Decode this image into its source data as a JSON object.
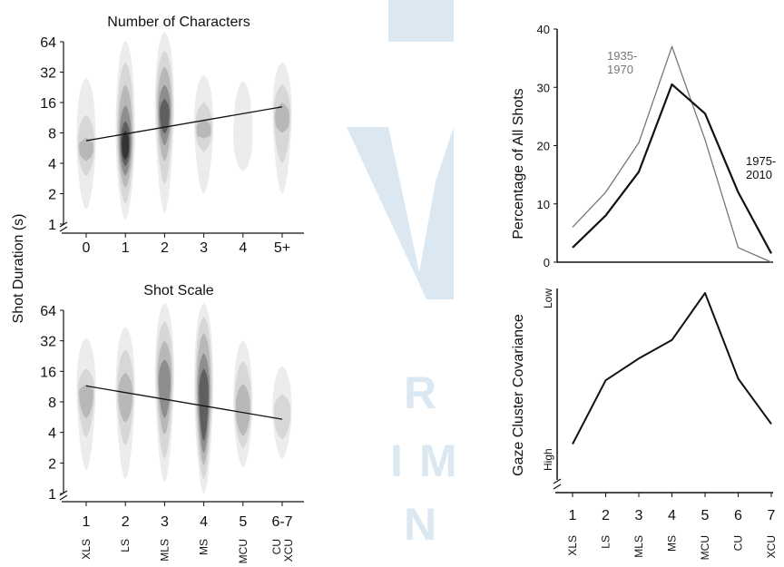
{
  "colors": {
    "watermark": "#dbe8f1",
    "line_dark": "#111111",
    "line_light": "#777777",
    "density_levels": [
      "#ececec",
      "#d7d7d7",
      "#b8b8b8",
      "#8e8e8e",
      "#5f5f5f",
      "#333333"
    ]
  },
  "watermark": {
    "letters": [
      "R",
      "I",
      "M",
      "N"
    ]
  },
  "shared": {
    "ylabel": "Shot Duration (s)"
  },
  "chart_data": [
    {
      "id": "characters",
      "type": "heatmap",
      "title": "Number of Characters",
      "xlabel": "",
      "ylabel": "Shot Duration (s)",
      "y_scale": "log2",
      "y_ticks": [
        "1",
        "2",
        "4",
        "8",
        "16",
        "32",
        "64"
      ],
      "categories": [
        "0",
        "1",
        "2",
        "3",
        "4",
        "5+"
      ],
      "density_columns": [
        {
          "x": "0",
          "median": 5.7,
          "levels": [
            [
              1.4,
              28
            ],
            [
              3.0,
              12
            ],
            [
              4.2,
              7.2
            ]
          ]
        },
        {
          "x": "1",
          "median": 6.0,
          "levels": [
            [
              1.1,
              65
            ],
            [
              1.6,
              40
            ],
            [
              2.3,
              24
            ],
            [
              3.0,
              15
            ],
            [
              3.7,
              10.5
            ],
            [
              4.3,
              8.5
            ]
          ]
        },
        {
          "x": "2",
          "median": 12.0,
          "levels": [
            [
              1.3,
              80
            ],
            [
              2.5,
              52
            ],
            [
              4.2,
              36
            ],
            [
              6.0,
              24
            ],
            [
              7.8,
              17.5
            ]
          ]
        },
        {
          "x": "3",
          "median": 8.5,
          "levels": [
            [
              2.0,
              30
            ],
            [
              5.2,
              16
            ],
            [
              7.0,
              11
            ]
          ]
        },
        {
          "x": "4",
          "median": 6.5,
          "levels": [
            [
              3.3,
              26
            ]
          ]
        },
        {
          "x": "5+",
          "median": 11.0,
          "levels": [
            [
              2.0,
              40
            ],
            [
              4.0,
              24
            ],
            [
              8.0,
              16
            ]
          ]
        }
      ],
      "trend": {
        "from": {
          "x": 0,
          "y": 6.7
        },
        "to": {
          "x": 5,
          "y": 14.5
        }
      }
    },
    {
      "id": "scale",
      "type": "heatmap",
      "title": "Shot Scale",
      "xlabel": "",
      "ylabel": "Shot Duration (s)",
      "y_scale": "log2",
      "y_ticks": [
        "1",
        "2",
        "4",
        "8",
        "16",
        "32",
        "64"
      ],
      "categories": [
        "1",
        "2",
        "3",
        "4",
        "5",
        "6-7"
      ],
      "category_sublabels": [
        [
          "XLS"
        ],
        [
          "LS"
        ],
        [
          "MLS"
        ],
        [
          "MS"
        ],
        [
          "MCU"
        ],
        [
          "CU",
          "XCU"
        ]
      ],
      "density_columns": [
        {
          "x": "1",
          "median": 9.5,
          "levels": [
            [
              1.7,
              34
            ],
            [
              3.6,
              17
            ],
            [
              5.5,
              12
            ]
          ]
        },
        {
          "x": "2",
          "median": 9.0,
          "levels": [
            [
              1.4,
              44
            ],
            [
              3.0,
              26
            ],
            [
              5.0,
              15.5
            ]
          ]
        },
        {
          "x": "3",
          "median": 12.0,
          "levels": [
            [
              1.3,
              75
            ],
            [
              2.2,
              50
            ],
            [
              3.8,
              32
            ],
            [
              5.5,
              21
            ]
          ]
        },
        {
          "x": "4",
          "median": 9.0,
          "levels": [
            [
              1.0,
              75
            ],
            [
              1.4,
              55
            ],
            [
              1.9,
              38
            ],
            [
              2.5,
              24
            ],
            [
              3.3,
              17
            ]
          ]
        },
        {
          "x": "5",
          "median": 6.5,
          "levels": [
            [
              1.8,
              32
            ],
            [
              2.8,
              20
            ],
            [
              3.7,
              12
            ]
          ]
        },
        {
          "x": "6-7",
          "median": 6.0,
          "levels": [
            [
              2.2,
              18
            ],
            [
              3.4,
              9.5
            ]
          ]
        }
      ],
      "trend": {
        "from": {
          "x": 0,
          "y": 11.5
        },
        "to": {
          "x": 5,
          "y": 5.4
        }
      }
    },
    {
      "id": "percentage",
      "type": "line",
      "title": "",
      "xlabel": "",
      "ylabel": "Percentage of All Shots",
      "ylim": [
        0,
        40
      ],
      "y_ticks": [
        0,
        10,
        20,
        30,
        40
      ],
      "x": [
        1,
        2,
        3,
        4,
        5,
        6,
        7
      ],
      "series": [
        {
          "name": "1935-\n1970",
          "label_lines": [
            "1935-",
            "1970"
          ],
          "style": "light",
          "values": [
            6,
            12,
            20.5,
            37,
            21,
            2.5,
            0
          ]
        },
        {
          "name": "1975-\n2010",
          "label_lines": [
            "1975-",
            "2010"
          ],
          "style": "dark",
          "values": [
            2.5,
            8,
            15.5,
            30.5,
            25.5,
            12,
            1.5
          ]
        }
      ]
    },
    {
      "id": "gaze",
      "type": "line",
      "title": "",
      "xlabel": "",
      "ylabel": "Gaze Cluster Covariance",
      "y_end_labels": {
        "top": "Low",
        "bottom": "High"
      },
      "ylim": [
        0,
        10
      ],
      "categories": [
        "1",
        "2",
        "3",
        "4",
        "5",
        "6",
        "7"
      ],
      "category_sublabels": [
        [
          "XLS"
        ],
        [
          "LS"
        ],
        [
          "MLS"
        ],
        [
          "MS"
        ],
        [
          "MCU"
        ],
        [
          "CU"
        ],
        [
          "XCU"
        ]
      ],
      "series": [
        {
          "values": [
            1.0,
            4.8,
            6.1,
            7.2,
            10.0,
            4.9,
            2.2
          ]
        }
      ]
    }
  ]
}
